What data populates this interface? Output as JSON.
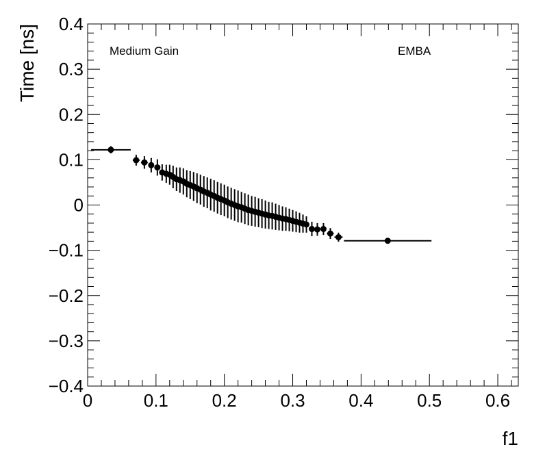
{
  "chart_data": {
    "type": "scatter",
    "xlabel": "f1",
    "ylabel": "Time [ns]",
    "xlim": [
      0,
      0.63
    ],
    "ylim": [
      -0.4,
      0.4
    ],
    "grid": false,
    "annotations": {
      "left": "Medium Gain",
      "right": "EMBA"
    },
    "x_major_ticks": [
      0,
      0.1,
      0.2,
      0.3,
      0.4,
      0.5,
      0.6
    ],
    "x_tick_labels": [
      "0",
      "0.1",
      "0.2",
      "0.3",
      "0.4",
      "0.5",
      "0.6"
    ],
    "y_major_ticks": [
      -0.4,
      -0.3,
      -0.2,
      -0.1,
      0,
      0.1,
      0.2,
      0.3,
      0.4
    ],
    "y_tick_labels": [
      "−0.4",
      "−0.3",
      "−0.2",
      "−0.1",
      "0",
      "0.1",
      "0.2",
      "0.3",
      "0.4"
    ],
    "points": [
      {
        "x": 0.034,
        "y": 0.122,
        "xerr": 0.029,
        "yerr": 0.008
      },
      {
        "x": 0.071,
        "y": 0.099,
        "xerr": 0.005,
        "yerr": 0.012
      },
      {
        "x": 0.083,
        "y": 0.094,
        "xerr": 0.005,
        "yerr": 0.014
      },
      {
        "x": 0.093,
        "y": 0.088,
        "xerr": 0.004,
        "yerr": 0.016
      },
      {
        "x": 0.102,
        "y": 0.083,
        "xerr": 0.004,
        "yerr": 0.018
      },
      {
        "x": 0.109,
        "y": 0.072,
        "xerr": 0.003,
        "yerr": 0.018
      },
      {
        "x": 0.115,
        "y": 0.069,
        "xerr": 0.003,
        "yerr": 0.02
      },
      {
        "x": 0.12,
        "y": 0.067,
        "xerr": 0.002,
        "yerr": 0.022
      },
      {
        "x": 0.125,
        "y": 0.062,
        "xerr": 0.002,
        "yerr": 0.025
      },
      {
        "x": 0.13,
        "y": 0.057,
        "xerr": 0.002,
        "yerr": 0.026
      },
      {
        "x": 0.135,
        "y": 0.055,
        "xerr": 0.002,
        "yerr": 0.028
      },
      {
        "x": 0.14,
        "y": 0.052,
        "xerr": 0.002,
        "yerr": 0.029
      },
      {
        "x": 0.145,
        "y": 0.047,
        "xerr": 0.002,
        "yerr": 0.03
      },
      {
        "x": 0.15,
        "y": 0.044,
        "xerr": 0.002,
        "yerr": 0.031
      },
      {
        "x": 0.155,
        "y": 0.041,
        "xerr": 0.002,
        "yerr": 0.032
      },
      {
        "x": 0.16,
        "y": 0.037,
        "xerr": 0.002,
        "yerr": 0.033
      },
      {
        "x": 0.165,
        "y": 0.034,
        "xerr": 0.002,
        "yerr": 0.033
      },
      {
        "x": 0.17,
        "y": 0.03,
        "xerr": 0.002,
        "yerr": 0.034
      },
      {
        "x": 0.175,
        "y": 0.027,
        "xerr": 0.002,
        "yerr": 0.034
      },
      {
        "x": 0.18,
        "y": 0.023,
        "xerr": 0.002,
        "yerr": 0.035
      },
      {
        "x": 0.185,
        "y": 0.02,
        "xerr": 0.002,
        "yerr": 0.035
      },
      {
        "x": 0.19,
        "y": 0.016,
        "xerr": 0.002,
        "yerr": 0.035
      },
      {
        "x": 0.195,
        "y": 0.013,
        "xerr": 0.002,
        "yerr": 0.035
      },
      {
        "x": 0.2,
        "y": 0.01,
        "xerr": 0.002,
        "yerr": 0.035
      },
      {
        "x": 0.205,
        "y": 0.006,
        "xerr": 0.002,
        "yerr": 0.035
      },
      {
        "x": 0.21,
        "y": 0.003,
        "xerr": 0.002,
        "yerr": 0.035
      },
      {
        "x": 0.215,
        "y": 0.0,
        "xerr": 0.002,
        "yerr": 0.035
      },
      {
        "x": 0.22,
        "y": -0.003,
        "xerr": 0.002,
        "yerr": 0.035
      },
      {
        "x": 0.225,
        "y": -0.005,
        "xerr": 0.002,
        "yerr": 0.034
      },
      {
        "x": 0.23,
        "y": -0.008,
        "xerr": 0.002,
        "yerr": 0.034
      },
      {
        "x": 0.235,
        "y": -0.011,
        "xerr": 0.002,
        "yerr": 0.034
      },
      {
        "x": 0.24,
        "y": -0.013,
        "xerr": 0.002,
        "yerr": 0.033
      },
      {
        "x": 0.245,
        "y": -0.015,
        "xerr": 0.002,
        "yerr": 0.033
      },
      {
        "x": 0.25,
        "y": -0.017,
        "xerr": 0.002,
        "yerr": 0.032
      },
      {
        "x": 0.255,
        "y": -0.019,
        "xerr": 0.002,
        "yerr": 0.032
      },
      {
        "x": 0.26,
        "y": -0.021,
        "xerr": 0.002,
        "yerr": 0.031
      },
      {
        "x": 0.265,
        "y": -0.023,
        "xerr": 0.002,
        "yerr": 0.03
      },
      {
        "x": 0.27,
        "y": -0.024,
        "xerr": 0.002,
        "yerr": 0.03
      },
      {
        "x": 0.275,
        "y": -0.026,
        "xerr": 0.002,
        "yerr": 0.029
      },
      {
        "x": 0.28,
        "y": -0.028,
        "xerr": 0.002,
        "yerr": 0.028
      },
      {
        "x": 0.285,
        "y": -0.03,
        "xerr": 0.002,
        "yerr": 0.027
      },
      {
        "x": 0.29,
        "y": -0.031,
        "xerr": 0.002,
        "yerr": 0.026
      },
      {
        "x": 0.295,
        "y": -0.033,
        "xerr": 0.002,
        "yerr": 0.025
      },
      {
        "x": 0.3,
        "y": -0.035,
        "xerr": 0.002,
        "yerr": 0.024
      },
      {
        "x": 0.305,
        "y": -0.037,
        "xerr": 0.002,
        "yerr": 0.023
      },
      {
        "x": 0.31,
        "y": -0.039,
        "xerr": 0.002,
        "yerr": 0.022
      },
      {
        "x": 0.315,
        "y": -0.041,
        "xerr": 0.002,
        "yerr": 0.02
      },
      {
        "x": 0.32,
        "y": -0.043,
        "xerr": 0.002,
        "yerr": 0.018
      },
      {
        "x": 0.328,
        "y": -0.053,
        "xerr": 0.003,
        "yerr": 0.016
      },
      {
        "x": 0.336,
        "y": -0.054,
        "xerr": 0.003,
        "yerr": 0.014
      },
      {
        "x": 0.345,
        "y": -0.053,
        "xerr": 0.004,
        "yerr": 0.013
      },
      {
        "x": 0.355,
        "y": -0.063,
        "xerr": 0.005,
        "yerr": 0.012
      },
      {
        "x": 0.367,
        "y": -0.071,
        "xerr": 0.006,
        "yerr": 0.01
      },
      {
        "x": 0.439,
        "y": -0.079,
        "xerr": 0.064,
        "yerr": 0.006
      }
    ]
  }
}
